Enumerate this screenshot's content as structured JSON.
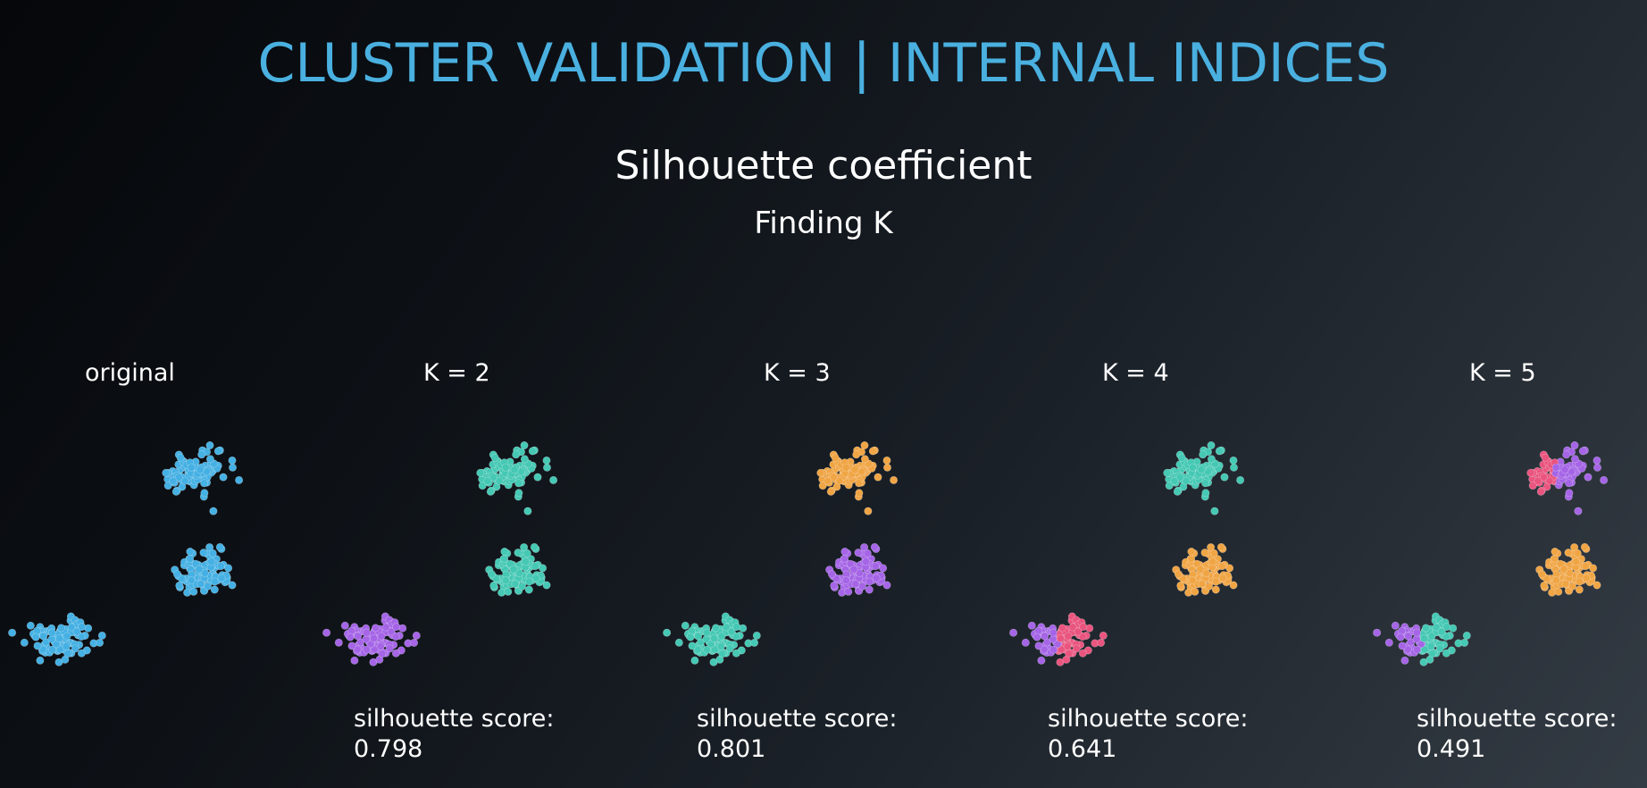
{
  "title": "CLUSTER VALIDATION | INTERNAL INDICES",
  "subtitle": "Silhouette coefficient",
  "subsubtitle": "Finding K",
  "colors": {
    "title": "#4ab0e0",
    "blue": "#45b0e3",
    "teal": "#45c8b4",
    "purple": "#a565e6",
    "orange": "#f0a545",
    "pink": "#e9557f"
  },
  "panels": [
    {
      "label": "original",
      "score_label": "",
      "score_value": "",
      "blobs": [
        {
          "id": "top",
          "color": "blue"
        },
        {
          "id": "middle",
          "color": "blue"
        },
        {
          "id": "bottom",
          "color": "blue"
        }
      ]
    },
    {
      "label": "K = 2",
      "score_label": "silhouette score:",
      "score_value": "0.798",
      "blobs": [
        {
          "id": "top",
          "color": "teal"
        },
        {
          "id": "middle",
          "color": "teal"
        },
        {
          "id": "bottom",
          "color": "purple"
        }
      ]
    },
    {
      "label": "K = 3",
      "score_label": "silhouette score:",
      "score_value": "0.801",
      "blobs": [
        {
          "id": "top",
          "color": "orange"
        },
        {
          "id": "middle",
          "color": "purple"
        },
        {
          "id": "bottom",
          "color": "teal"
        }
      ]
    },
    {
      "label": "K = 4",
      "score_label": "silhouette score:",
      "score_value": "0.641",
      "blobs": [
        {
          "id": "top",
          "color": "teal"
        },
        {
          "id": "middle",
          "color": "orange"
        },
        {
          "id": "bottom",
          "color": "pink",
          "split": "purple",
          "split_side": "left"
        }
      ]
    },
    {
      "label": "K = 5",
      "score_label": "silhouette score:",
      "score_value": "0.491",
      "blobs": [
        {
          "id": "top",
          "color": "purple",
          "split": "pink",
          "split_side": "left"
        },
        {
          "id": "middle",
          "color": "orange"
        },
        {
          "id": "bottom",
          "color": "teal",
          "split": "purple",
          "split_side": "left"
        }
      ]
    }
  ]
}
